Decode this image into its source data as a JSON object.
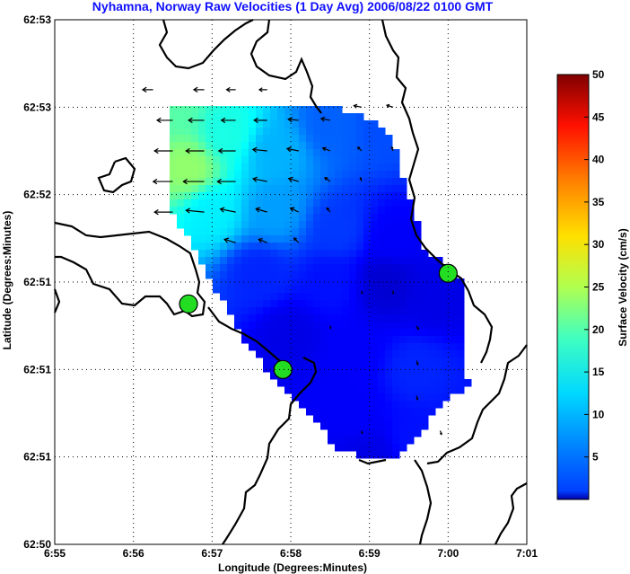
{
  "chart_data": {
    "type": "heatmap",
    "title": "Nyhamna, Norway Raw Velocities (1 Day Avg) 2006/08/22 0100 GMT",
    "xlabel": "Longitude (Degrees:Minutes)",
    "ylabel": "Latitude (Degrees:Minutes)",
    "x_ticks": [
      "6:55",
      "6:56",
      "6:57",
      "6:58",
      "6:59",
      "7:00",
      "7:01"
    ],
    "y_ticks": [
      "62:50",
      "62:51",
      "62:51",
      "62:51",
      "62:52",
      "62:53",
      "62:53"
    ],
    "grid": true,
    "colorbar": {
      "label": "Surface Velocity (cm/s)",
      "ticks": [
        "5",
        "10",
        "15",
        "20",
        "25",
        "30",
        "35",
        "40",
        "45",
        "50"
      ],
      "range": [
        0,
        50
      ],
      "colormap": "jet"
    },
    "stations": [
      {
        "lon_min": 56.7,
        "lat_index": 2.75
      },
      {
        "lon_min": 57.9,
        "lat_index": 2.0
      },
      {
        "lon_min": 60.0,
        "lat_index": 3.1
      }
    ],
    "velocity_field_note_free": true,
    "speed_samples": [
      {
        "lon": 56.5,
        "lat": 5.0,
        "speed": 23
      },
      {
        "lon": 56.7,
        "lat": 4.3,
        "speed": 26
      },
      {
        "lon": 57.2,
        "lat": 4.7,
        "speed": 20
      },
      {
        "lon": 57.8,
        "lat": 4.5,
        "speed": 15
      },
      {
        "lon": 58.5,
        "lat": 4.8,
        "speed": 11
      },
      {
        "lon": 59.2,
        "lat": 4.8,
        "speed": 10
      },
      {
        "lon": 57.0,
        "lat": 3.8,
        "speed": 18
      },
      {
        "lon": 57.8,
        "lat": 3.8,
        "speed": 14
      },
      {
        "lon": 58.6,
        "lat": 3.6,
        "speed": 9
      },
      {
        "lon": 59.3,
        "lat": 3.5,
        "speed": 6
      },
      {
        "lon": 57.6,
        "lat": 3.1,
        "speed": 8
      },
      {
        "lon": 58.5,
        "lat": 3.0,
        "speed": 7
      },
      {
        "lon": 59.2,
        "lat": 3.0,
        "speed": 4
      },
      {
        "lon": 59.8,
        "lat": 2.8,
        "speed": 5
      },
      {
        "lon": 58.0,
        "lat": 2.4,
        "speed": 5
      },
      {
        "lon": 58.8,
        "lat": 2.2,
        "speed": 6
      },
      {
        "lon": 59.6,
        "lat": 2.0,
        "speed": 8
      },
      {
        "lon": 58.8,
        "lat": 1.5,
        "speed": 6
      },
      {
        "lon": 59.6,
        "lat": 1.2,
        "speed": 7
      },
      {
        "lon": 59.0,
        "lat": 1.0,
        "speed": 5
      }
    ],
    "vectors": [
      {
        "lon": 56.25,
        "lat": 5.2,
        "u": -1,
        "v": 0,
        "speed": 8
      },
      {
        "lon": 56.5,
        "lat": 4.85,
        "u": -1,
        "v": 0,
        "speed": 12
      },
      {
        "lon": 56.5,
        "lat": 4.5,
        "u": -1,
        "v": 0,
        "speed": 14
      },
      {
        "lon": 56.5,
        "lat": 4.15,
        "u": -1,
        "v": 0,
        "speed": 15
      },
      {
        "lon": 56.5,
        "lat": 3.8,
        "u": -1,
        "v": 0,
        "speed": 14
      },
      {
        "lon": 56.9,
        "lat": 5.2,
        "u": -1,
        "v": 0,
        "speed": 8
      },
      {
        "lon": 56.9,
        "lat": 4.85,
        "u": -1,
        "v": 0,
        "speed": 12
      },
      {
        "lon": 56.9,
        "lat": 4.5,
        "u": -1,
        "v": 0,
        "speed": 14
      },
      {
        "lon": 56.9,
        "lat": 4.15,
        "u": -1,
        "v": 0,
        "speed": 16
      },
      {
        "lon": 56.9,
        "lat": 3.8,
        "u": -1,
        "v": 0.1,
        "speed": 14
      },
      {
        "lon": 57.3,
        "lat": 5.2,
        "u": -1,
        "v": 0,
        "speed": 7
      },
      {
        "lon": 57.3,
        "lat": 4.85,
        "u": -1,
        "v": 0,
        "speed": 11
      },
      {
        "lon": 57.3,
        "lat": 4.5,
        "u": -1,
        "v": 0,
        "speed": 13
      },
      {
        "lon": 57.3,
        "lat": 4.15,
        "u": -1,
        "v": 0,
        "speed": 14
      },
      {
        "lon": 57.3,
        "lat": 3.8,
        "u": -1,
        "v": 0.2,
        "speed": 12
      },
      {
        "lon": 57.3,
        "lat": 3.45,
        "u": -1,
        "v": 0.3,
        "speed": 9
      },
      {
        "lon": 57.7,
        "lat": 5.2,
        "u": -1,
        "v": 0,
        "speed": 6
      },
      {
        "lon": 57.7,
        "lat": 4.85,
        "u": -1,
        "v": 0,
        "speed": 10
      },
      {
        "lon": 57.7,
        "lat": 4.5,
        "u": -1,
        "v": 0.1,
        "speed": 11
      },
      {
        "lon": 57.7,
        "lat": 4.15,
        "u": -1,
        "v": 0.2,
        "speed": 11
      },
      {
        "lon": 57.7,
        "lat": 3.8,
        "u": -1,
        "v": 0.3,
        "speed": 9
      },
      {
        "lon": 57.7,
        "lat": 3.45,
        "u": -1,
        "v": 0.4,
        "speed": 7
      },
      {
        "lon": 58.1,
        "lat": 4.85,
        "u": -1,
        "v": 0.1,
        "speed": 8
      },
      {
        "lon": 58.1,
        "lat": 4.5,
        "u": -1,
        "v": 0.2,
        "speed": 9
      },
      {
        "lon": 58.1,
        "lat": 4.15,
        "u": -1,
        "v": 0.3,
        "speed": 8
      },
      {
        "lon": 58.1,
        "lat": 3.8,
        "u": -1,
        "v": 0.5,
        "speed": 7
      },
      {
        "lon": 58.1,
        "lat": 3.45,
        "u": -0.8,
        "v": 0.8,
        "speed": 5
      },
      {
        "lon": 58.5,
        "lat": 4.85,
        "u": -1,
        "v": 0.2,
        "speed": 7
      },
      {
        "lon": 58.5,
        "lat": 4.5,
        "u": -1,
        "v": 0.4,
        "speed": 6
      },
      {
        "lon": 58.5,
        "lat": 4.15,
        "u": -0.8,
        "v": 0.6,
        "speed": 5
      },
      {
        "lon": 58.5,
        "lat": 3.8,
        "u": -0.6,
        "v": 0.8,
        "speed": 4
      },
      {
        "lon": 58.9,
        "lat": 5.0,
        "u": -1,
        "v": 0.2,
        "speed": 6
      },
      {
        "lon": 58.9,
        "lat": 4.5,
        "u": -0.7,
        "v": 0.7,
        "speed": 4
      },
      {
        "lon": 58.9,
        "lat": 4.15,
        "u": -0.3,
        "v": 1,
        "speed": 3
      },
      {
        "lon": 59.3,
        "lat": 5.0,
        "u": -1,
        "v": 0.3,
        "speed": 5
      },
      {
        "lon": 59.3,
        "lat": 4.5,
        "u": -0.3,
        "v": 1,
        "speed": 3
      },
      {
        "lon": 59.6,
        "lat": 2.5,
        "u": 0.5,
        "v": -1,
        "speed": 3
      },
      {
        "lon": 59.6,
        "lat": 2.1,
        "u": 0.3,
        "v": -1,
        "speed": 3
      },
      {
        "lon": 59.6,
        "lat": 1.7,
        "u": 0.2,
        "v": -1,
        "speed": 3
      },
      {
        "lon": 59.9,
        "lat": 1.3,
        "u": 0.3,
        "v": -1,
        "speed": 3
      },
      {
        "lon": 58.9,
        "lat": 1.3,
        "u": 0.2,
        "v": -1,
        "speed": 2
      },
      {
        "lon": 58.5,
        "lat": 2.5,
        "u": 0.2,
        "v": -1,
        "speed": 2
      },
      {
        "lon": 58.9,
        "lat": 2.9,
        "u": 0.2,
        "v": -1,
        "speed": 2
      },
      {
        "lon": 59.3,
        "lat": 2.9,
        "u": 0.1,
        "v": -1,
        "speed": 2
      }
    ]
  }
}
